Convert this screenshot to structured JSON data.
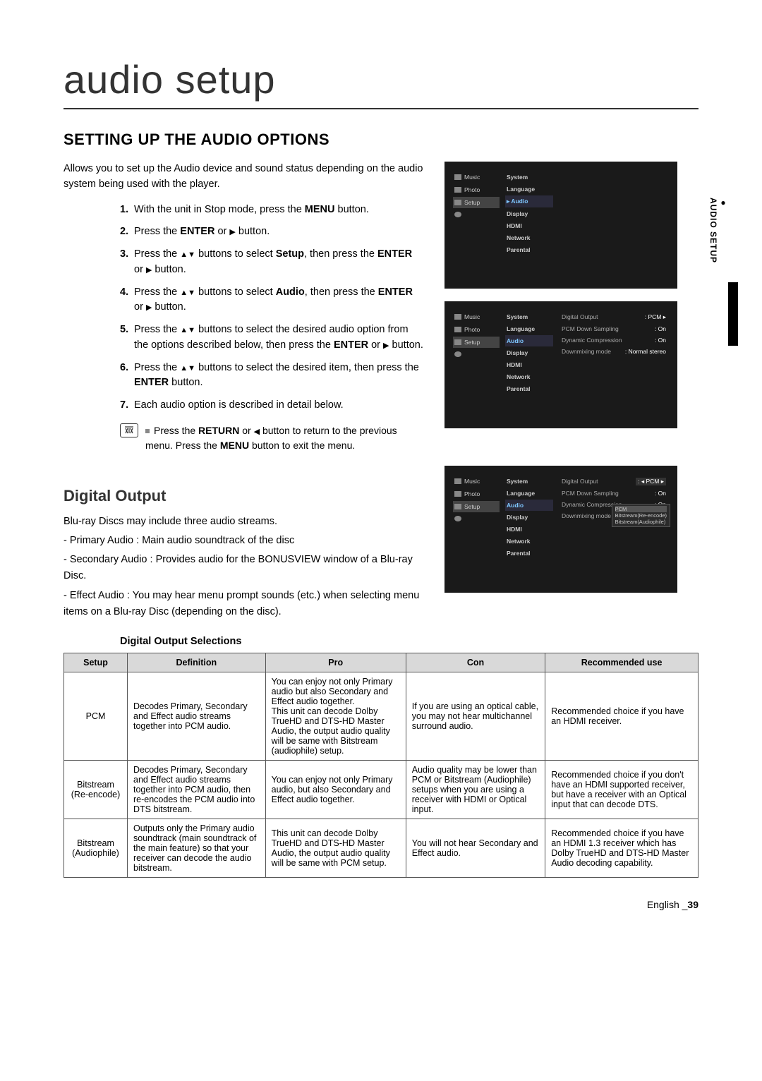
{
  "page": {
    "title": "audio setup",
    "section_title": "SETTING UP THE AUDIO OPTIONS",
    "intro": "Allows you to set up the Audio device and sound status depending on the audio system being used with the player.",
    "side_tab": "AUDIO SETUP",
    "footer_lang": "English",
    "footer_page": "39"
  },
  "steps": [
    {
      "n": "1.",
      "html": "With the unit in Stop mode, press the <b>MENU</b> button."
    },
    {
      "n": "2.",
      "html": "Press the <b>ENTER</b> or <span class='tri'>▶</span> button."
    },
    {
      "n": "3.",
      "html": "Press the <span class='tri'>▲▼</span> buttons to select <b>Setup</b>, then press the <b>ENTER</b> or <span class='tri'>▶</span> button."
    },
    {
      "n": "4.",
      "html": "Press the <span class='tri'>▲▼</span> buttons to select <b>Audio</b>, then press the <b>ENTER</b> or <span class='tri'>▶</span> button."
    },
    {
      "n": "5.",
      "html": "Press the <span class='tri'>▲▼</span> buttons to select the desired audio option from the options described below, then press the <b>ENTER</b> or <span class='tri'>▶</span> button."
    },
    {
      "n": "6.",
      "html": "Press the <span class='tri'>▲▼</span> buttons to select the desired item, then press the <b>ENTER</b> button."
    },
    {
      "n": "7.",
      "html": "Each audio option is described in detail below."
    }
  ],
  "note": "Press the <b>RETURN</b> or <span class='tri'>◀</span> button to return to the previous menu. Press the <b>MENU</b> button to exit the menu.",
  "digital_output": {
    "title": "Digital Output",
    "intro": [
      "Blu-ray Discs may include three audio streams.",
      "- Primary Audio : Main audio soundtrack of the disc",
      "- Secondary Audio : Provides audio for the BONUSVIEW window of a Blu-ray Disc.",
      "- Effect Audio : You may hear menu prompt sounds (etc.) when selecting menu items on a Blu-ray Disc (depending on the disc)."
    ],
    "selections_title": "Digital Output Selections"
  },
  "screenshots": {
    "sidebar": [
      "Music",
      "Photo",
      "Setup"
    ],
    "menu": [
      "System",
      "Language",
      "Audio",
      "Display",
      "HDMI",
      "Network",
      "Parental"
    ],
    "opts": [
      {
        "lbl": "Digital Output",
        "val": "PCM"
      },
      {
        "lbl": "PCM Down Sampling",
        "val": "On"
      },
      {
        "lbl": "Dynamic Compression",
        "val": "On"
      },
      {
        "lbl": "Downmixing mode",
        "val": "Normal stereo"
      }
    ],
    "popup": [
      "PCM",
      "Bitstream(Re-encode)",
      "Bitstream(Audiophile)"
    ]
  },
  "table": {
    "headers": [
      "Setup",
      "Definition",
      "Pro",
      "Con",
      "Recommended use"
    ],
    "rows": [
      {
        "setup": "PCM",
        "def": "Decodes Primary, Secondary and Effect audio streams together into PCM audio.",
        "pro": "You can enjoy not only Primary audio but also Secondary and Effect audio together.\nThis unit can decode Dolby TrueHD and DTS-HD Master Audio, the output audio quality will be same with Bitstream (audiophile) setup.",
        "con": "If you are using an optical cable, you may not hear multichannel surround audio.",
        "rec": "Recommended choice if you have an HDMI receiver."
      },
      {
        "setup": "Bitstream (Re-encode)",
        "def": "Decodes Primary, Secondary and Effect audio streams together into PCM audio, then re-encodes the PCM audio into DTS bitstream.",
        "pro": "You can enjoy not only Primary audio, but also Secondary and Effect audio together.",
        "con": "Audio quality may be lower than PCM or Bitstream (Audiophile) setups when you are using a receiver with HDMI or Optical input.",
        "rec": "Recommended choice if you don't have an HDMI supported receiver, but have a receiver with an Optical input that can decode DTS."
      },
      {
        "setup": "Bitstream (Audiophile)",
        "def": "Outputs only the Primary audio soundtrack (main soundtrack of the main feature) so that your receiver can decode the audio bitstream.",
        "pro": "This unit can decode Dolby TrueHD and DTS-HD Master Audio, the output audio quality will be same with PCM setup.",
        "con": "You will not hear Secondary and Effect audio.",
        "rec": "Recommended choice if you have an HDMI 1.3 receiver which has Dolby TrueHD and DTS-HD Master Audio decoding capability."
      }
    ]
  }
}
